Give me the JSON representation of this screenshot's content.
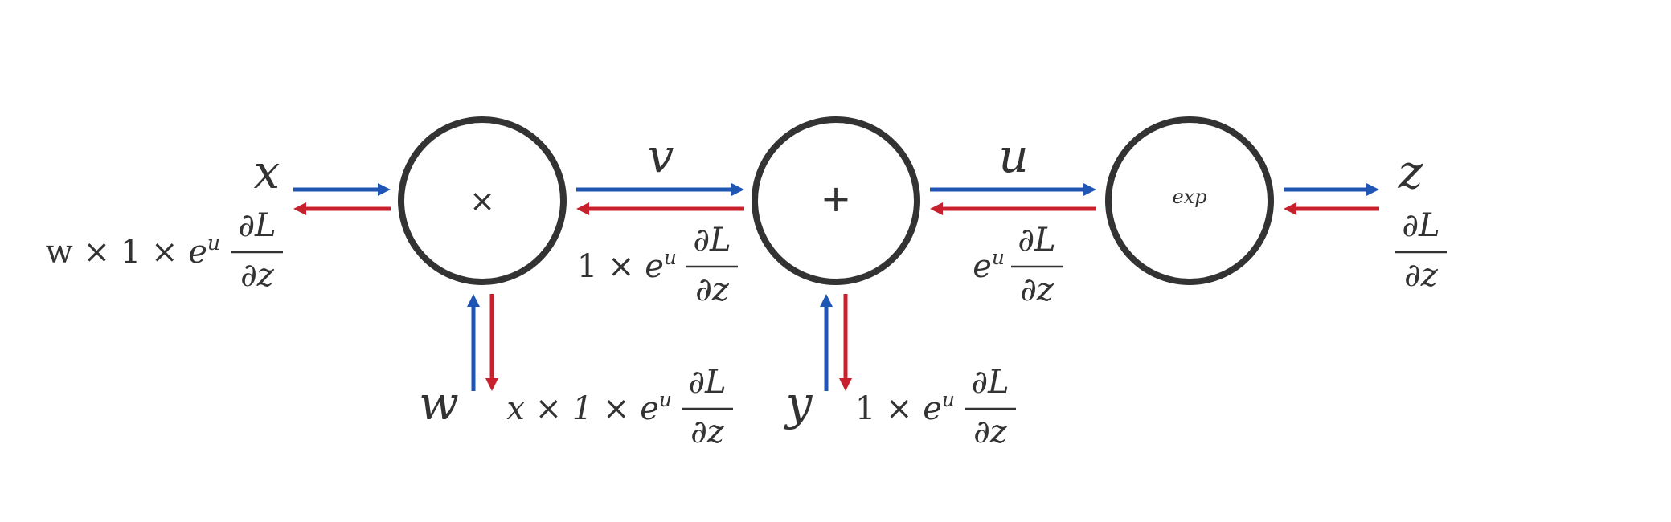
{
  "colors": {
    "forward": "#1f56b4",
    "backward": "#c8202c",
    "node_stroke": "#333333",
    "text": "#333333"
  },
  "nodes": {
    "multiply": {
      "symbol": "×"
    },
    "add": {
      "symbol": "+"
    },
    "exp": {
      "symbol": "exp"
    }
  },
  "variables": {
    "x": "x",
    "w": "w",
    "v": "v",
    "y": "y",
    "u": "u",
    "z": "z"
  },
  "gradients": {
    "x_prefix": "w × 1 × ",
    "w_prefix": "x × 1 × ",
    "v_prefix": "1 × ",
    "y_prefix": "1 × ",
    "u_prefix": "",
    "exp_base": "e",
    "exp_power": "u",
    "numerator": "∂L",
    "denominator": "∂z"
  }
}
